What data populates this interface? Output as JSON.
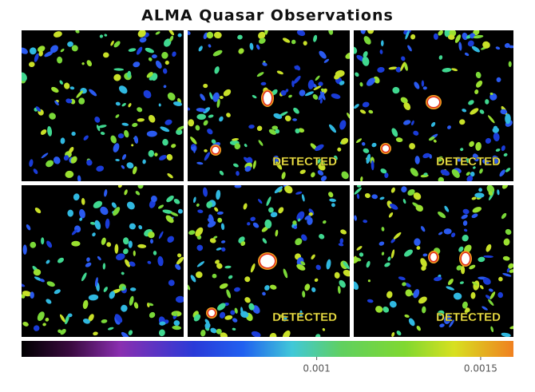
{
  "title": "ALMA Quasar Observations",
  "panel_labels": [
    "DETECTED",
    "DETECTED",
    "DETECTED",
    "DETECTED"
  ],
  "colorbar": {
    "lim": [
      0.0001,
      0.0016
    ],
    "ticks": [
      0.001,
      0.0015
    ]
  }
}
